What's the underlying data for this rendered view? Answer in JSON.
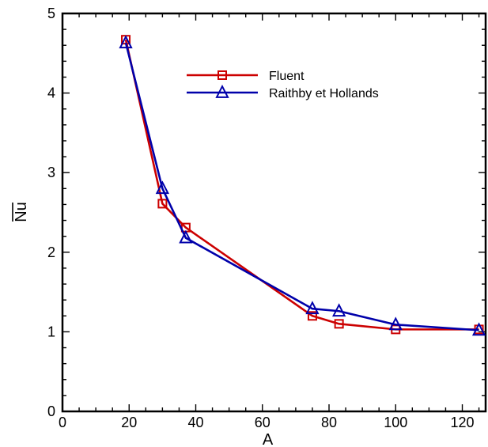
{
  "chart_data": {
    "type": "line",
    "title": "",
    "xlabel": "A",
    "ylabel": "Nu",
    "ylabel_overbar": true,
    "xlim": [
      0,
      127
    ],
    "ylim": [
      0,
      5
    ],
    "x_ticks": [
      "0",
      "20",
      "40",
      "60",
      "80",
      "100",
      "120"
    ],
    "y_ticks": [
      "0",
      "1",
      "2",
      "3",
      "4",
      "5"
    ],
    "grid": false,
    "legend_position": "upper-center",
    "series": [
      {
        "name": "Fluent",
        "color": "#cc0000",
        "marker": "square",
        "x": [
          19,
          30,
          37,
          75,
          83,
          100,
          125
        ],
        "y": [
          4.67,
          2.61,
          2.31,
          1.2,
          1.1,
          1.03,
          1.03
        ]
      },
      {
        "name": "Raithby et Hollands",
        "color": "#0000aa",
        "marker": "triangle",
        "x": [
          19,
          30,
          37,
          75,
          83,
          100,
          125
        ],
        "y": [
          4.63,
          2.8,
          2.18,
          1.29,
          1.26,
          1.09,
          1.02
        ]
      }
    ]
  }
}
